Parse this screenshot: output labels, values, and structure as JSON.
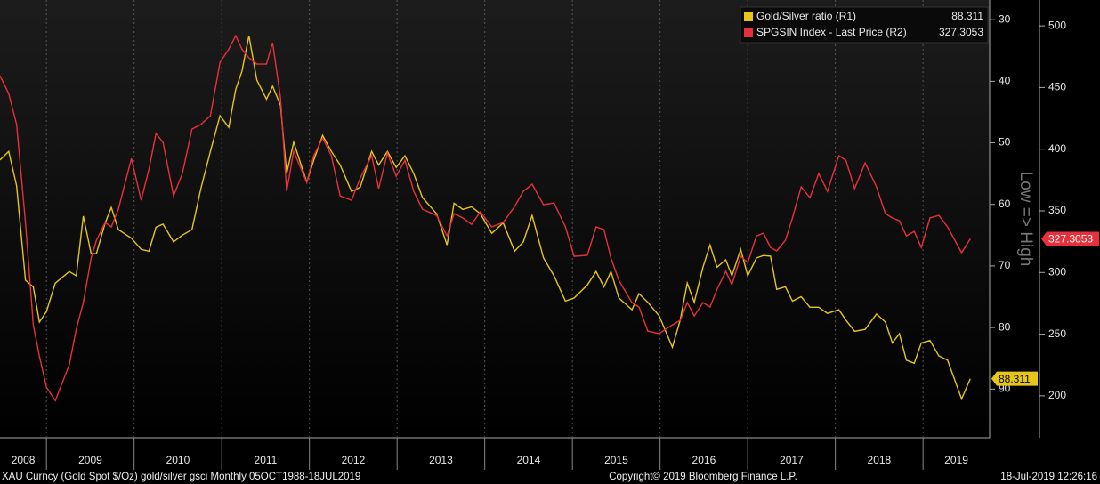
{
  "chart_data": {
    "type": "line",
    "x": [
      2008.47,
      2008.57,
      2008.66,
      2008.76,
      2008.85,
      2008.92,
      2009.0,
      2009.1,
      2009.26,
      2009.34,
      2009.42,
      2009.51,
      2009.57,
      2009.67,
      2009.74,
      2009.82,
      2009.97,
      2010.08,
      2010.17,
      2010.25,
      2010.33,
      2010.45,
      2010.55,
      2010.66,
      2010.76,
      2010.87,
      2010.98,
      2011.08,
      2011.16,
      2011.23,
      2011.31,
      2011.4,
      2011.51,
      2011.58,
      2011.67,
      2011.74,
      2011.82,
      2011.97,
      2012.05,
      2012.15,
      2012.25,
      2012.35,
      2012.48,
      2012.58,
      2012.71,
      2012.79,
      2012.89,
      2012.99,
      2013.09,
      2013.19,
      2013.29,
      2013.45,
      2013.57,
      2013.65,
      2013.75,
      2013.85,
      2013.95,
      2014.08,
      2014.21,
      2014.34,
      2014.44,
      2014.54,
      2014.67,
      2014.79,
      2014.92,
      2015.02,
      2015.17,
      2015.27,
      2015.36,
      2015.44,
      2015.53,
      2015.68,
      2015.76,
      2015.86,
      2015.99,
      2016.14,
      2016.23,
      2016.31,
      2016.39,
      2016.49,
      2016.57,
      2016.65,
      2016.75,
      2016.82,
      2016.92,
      2017.0,
      2017.1,
      2017.18,
      2017.26,
      2017.33,
      2017.43,
      2017.51,
      2017.61,
      2017.71,
      2017.81,
      2017.91,
      2018.04,
      2018.12,
      2018.22,
      2018.34,
      2018.47,
      2018.57,
      2018.65,
      2018.73,
      2018.81,
      2018.9,
      2018.98,
      2019.08,
      2019.18,
      2019.28,
      2019.44,
      2019.54
    ],
    "series": [
      {
        "name": "Gold/Silver ratio (R1)",
        "color": "#e6c619",
        "axis": "y",
        "values": [
          52.8,
          51.4,
          57,
          72.3,
          73.4,
          79.1,
          77.4,
          72.8,
          70.9,
          71.6,
          61.9,
          68,
          68,
          63,
          60.5,
          64.1,
          65.5,
          67.3,
          67.6,
          63.7,
          63.2,
          66.1,
          65,
          64.1,
          57.5,
          51.4,
          45.6,
          47.5,
          41.3,
          38.4,
          32.6,
          39.8,
          42.9,
          40.8,
          43.9,
          55,
          49.9,
          56.4,
          52.8,
          48.8,
          51.4,
          53.6,
          57.9,
          57.2,
          51.4,
          53.6,
          51.4,
          54,
          52.1,
          55,
          58.9,
          61.5,
          66.6,
          59.8,
          60.8,
          60.4,
          61.5,
          64.7,
          63,
          67.6,
          66.1,
          61.8,
          68.7,
          71.6,
          75.7,
          75.2,
          73.1,
          70.9,
          73.4,
          70.9,
          75.2,
          77.1,
          74.5,
          75.9,
          78.1,
          83.2,
          78.8,
          72.8,
          75.9,
          70.2,
          66.6,
          70.2,
          69,
          71.6,
          67.3,
          71.6,
          68.7,
          68.3,
          68.4,
          73.8,
          73.4,
          75.7,
          75,
          76.7,
          76.7,
          77.7,
          77.1,
          78.8,
          80.6,
          80.3,
          77.8,
          79.1,
          82.5,
          81,
          85.3,
          85.8,
          82.5,
          82.1,
          84.6,
          85.3,
          91.6,
          88.311
        ]
      },
      {
        "name": "SPGSIN Index - Last Price (R2)",
        "color": "#e8303c",
        "axis": "y2",
        "values": [
          459.6,
          445,
          420,
          340.6,
          257.6,
          232,
          207,
          196,
          225,
          254,
          275.6,
          311.7,
          326,
          340.6,
          337,
          351.4,
          392.5,
          358.6,
          383.8,
          412.7,
          405.5,
          362.2,
          380.2,
          416.3,
          420,
          427.1,
          470.4,
          481.2,
          492,
          481.2,
          474,
          469,
          469,
          486.3,
          441.6,
          365.8,
          398.3,
          373,
          394.7,
          409,
          394.7,
          362.2,
          358.6,
          376.6,
          394.7,
          368,
          396.8,
          378,
          391,
          365.8,
          351.4,
          346.3,
          329.7,
          347.8,
          344.2,
          339.1,
          349.2,
          337,
          340.6,
          353.5,
          365.8,
          371.6,
          355,
          356.4,
          337,
          313.1,
          313.9,
          337,
          334.8,
          311.7,
          293.6,
          275.6,
          272,
          252.5,
          250.4,
          257.6,
          261.2,
          275.6,
          264.8,
          275.6,
          272,
          286.4,
          300.9,
          290,
          313.1,
          308.1,
          329.7,
          331.9,
          320.3,
          317.5,
          326.1,
          344.2,
          369.4,
          360.7,
          380.2,
          365.8,
          394.7,
          391,
          368,
          388.9,
          369.4,
          347.8,
          344.2,
          342,
          329.7,
          333.3,
          320.3,
          344.2,
          346.3,
          337,
          316,
          327.3053
        ]
      }
    ],
    "xlim": [
      2008.47,
      2019.76
    ],
    "xticks": [
      {
        "value": 2008,
        "label": "2008"
      },
      {
        "value": 2009,
        "label": "2009"
      },
      {
        "value": 2010,
        "label": "2010"
      },
      {
        "value": 2011,
        "label": "2011"
      },
      {
        "value": 2012,
        "label": "2012"
      },
      {
        "value": 2013,
        "label": "2013"
      },
      {
        "value": 2014,
        "label": "2014"
      },
      {
        "value": 2015,
        "label": "2015"
      },
      {
        "value": 2016,
        "label": "2016"
      },
      {
        "value": 2017,
        "label": "2017"
      },
      {
        "value": 2018,
        "label": "2018"
      },
      {
        "value": 2019,
        "label": "2019"
      }
    ],
    "ylim": [
      97.9,
      26.8
    ],
    "yticks": [
      30,
      40,
      50,
      60,
      70,
      80,
      90
    ],
    "y2lim": [
      166,
      521
    ],
    "y2ticks": [
      200,
      250,
      300,
      350,
      400,
      450,
      500
    ],
    "axis_annotation": "Low => High",
    "grid": true,
    "legend": "top-right",
    "footer": {
      "left": "XAU Curncy (Gold Spot  $/Oz) gold/silver gsci  Monthly 05OCT1988-18JUL2019",
      "center": "Copyright© 2019 Bloomberg Finance L.P.",
      "right": "18-Jul-2019 12:26:16"
    }
  }
}
